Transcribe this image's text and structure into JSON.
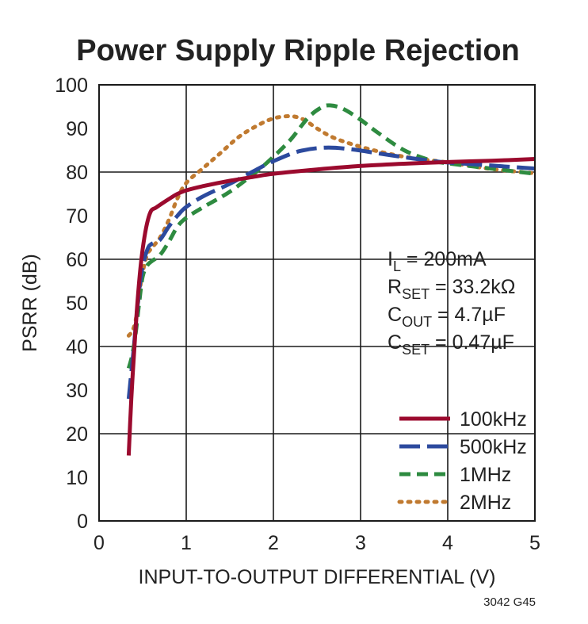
{
  "chart_data": {
    "type": "line",
    "title": "Power Supply Ripple Rejection",
    "xlabel": "INPUT-TO-OUTPUT DIFFERENTIAL (V)",
    "ylabel": "PSRR (dB)",
    "xlim": [
      0,
      5
    ],
    "ylim": [
      0,
      100
    ],
    "xticks": [
      "0",
      "1",
      "2",
      "3",
      "4",
      "5"
    ],
    "yticks": [
      "0",
      "10",
      "20",
      "30",
      "40",
      "50",
      "60",
      "70",
      "80",
      "90",
      "100"
    ],
    "grid": true,
    "legend_position": "bottom-right",
    "annotations": [
      {
        "main": "I",
        "sub": "L",
        "rest": " = 200mA"
      },
      {
        "main": "R",
        "sub": "SET",
        "rest": " = 33.2kΩ"
      },
      {
        "main": "C",
        "sub": "OUT",
        "rest": " = 4.7µF"
      },
      {
        "main": "C",
        "sub": "SET",
        "rest": " = 0.47µF"
      }
    ],
    "figure_number": "3042 G45",
    "series": [
      {
        "name": "100kHz",
        "color": "#9b0a2e",
        "dash": "solid",
        "x": [
          0.34,
          0.37,
          0.4,
          0.44,
          0.48,
          0.52,
          0.56,
          0.6,
          0.65,
          0.7,
          0.8,
          0.9,
          1.0,
          1.2,
          1.5,
          1.8,
          2.0,
          2.5,
          3.0,
          3.5,
          4.0,
          4.5,
          5.0
        ],
        "y": [
          15,
          28,
          38,
          50,
          59,
          65,
          69,
          71.2,
          71.8,
          72.5,
          73.8,
          75,
          75.8,
          76.8,
          78,
          79,
          79.6,
          80.6,
          81.4,
          81.9,
          82.3,
          82.6,
          83
        ]
      },
      {
        "name": "500kHz",
        "color": "#2c4a9e",
        "dash": "long",
        "x": [
          0.34,
          0.37,
          0.4,
          0.44,
          0.48,
          0.52,
          0.56,
          0.6,
          0.7,
          0.8,
          0.9,
          1.0,
          1.2,
          1.5,
          1.8,
          2.0,
          2.3,
          2.6,
          2.9,
          3.2,
          3.5,
          3.8,
          4.0,
          4.5,
          5.0
        ],
        "y": [
          28,
          34,
          40,
          49,
          56,
          60,
          62.5,
          63.5,
          64.5,
          67.5,
          70,
          72,
          74.5,
          77.3,
          80.5,
          82.5,
          84.8,
          85.6,
          85.2,
          84.3,
          83.4,
          82.6,
          82.2,
          81.5,
          80.8
        ]
      },
      {
        "name": "1MHz",
        "color": "#2e8b40",
        "dash": "medium",
        "x": [
          0.34,
          0.38,
          0.42,
          0.46,
          0.5,
          0.55,
          0.6,
          0.7,
          0.8,
          0.9,
          1.0,
          1.2,
          1.5,
          1.8,
          2.0,
          2.2,
          2.4,
          2.55,
          2.65,
          2.8,
          3.0,
          3.2,
          3.5,
          3.8,
          4.0,
          4.5,
          5.0
        ],
        "y": [
          35,
          38,
          43,
          50,
          56,
          58.5,
          59.5,
          61,
          64,
          67.5,
          69.5,
          72,
          75.5,
          80,
          83.5,
          87.5,
          92.5,
          94.8,
          95.3,
          94.5,
          92,
          89,
          85,
          82.7,
          82,
          80.8,
          79.6
        ]
      },
      {
        "name": "2MHz",
        "color": "#c07a30",
        "dash": "dotted",
        "x": [
          0.34,
          0.38,
          0.42,
          0.46,
          0.5,
          0.55,
          0.6,
          0.7,
          0.8,
          0.9,
          1.0,
          1.2,
          1.4,
          1.6,
          1.8,
          2.0,
          2.2,
          2.35,
          2.5,
          2.7,
          3.0,
          3.3,
          3.6,
          4.0,
          4.5,
          5.0
        ],
        "y": [
          42.5,
          43.5,
          46,
          52,
          57,
          61,
          62.5,
          65,
          69,
          74,
          77.5,
          81,
          84.5,
          88,
          90.5,
          92.3,
          92.8,
          92,
          90,
          87.8,
          85.8,
          84.3,
          83.2,
          82.2,
          80.7,
          79.7
        ]
      }
    ]
  }
}
